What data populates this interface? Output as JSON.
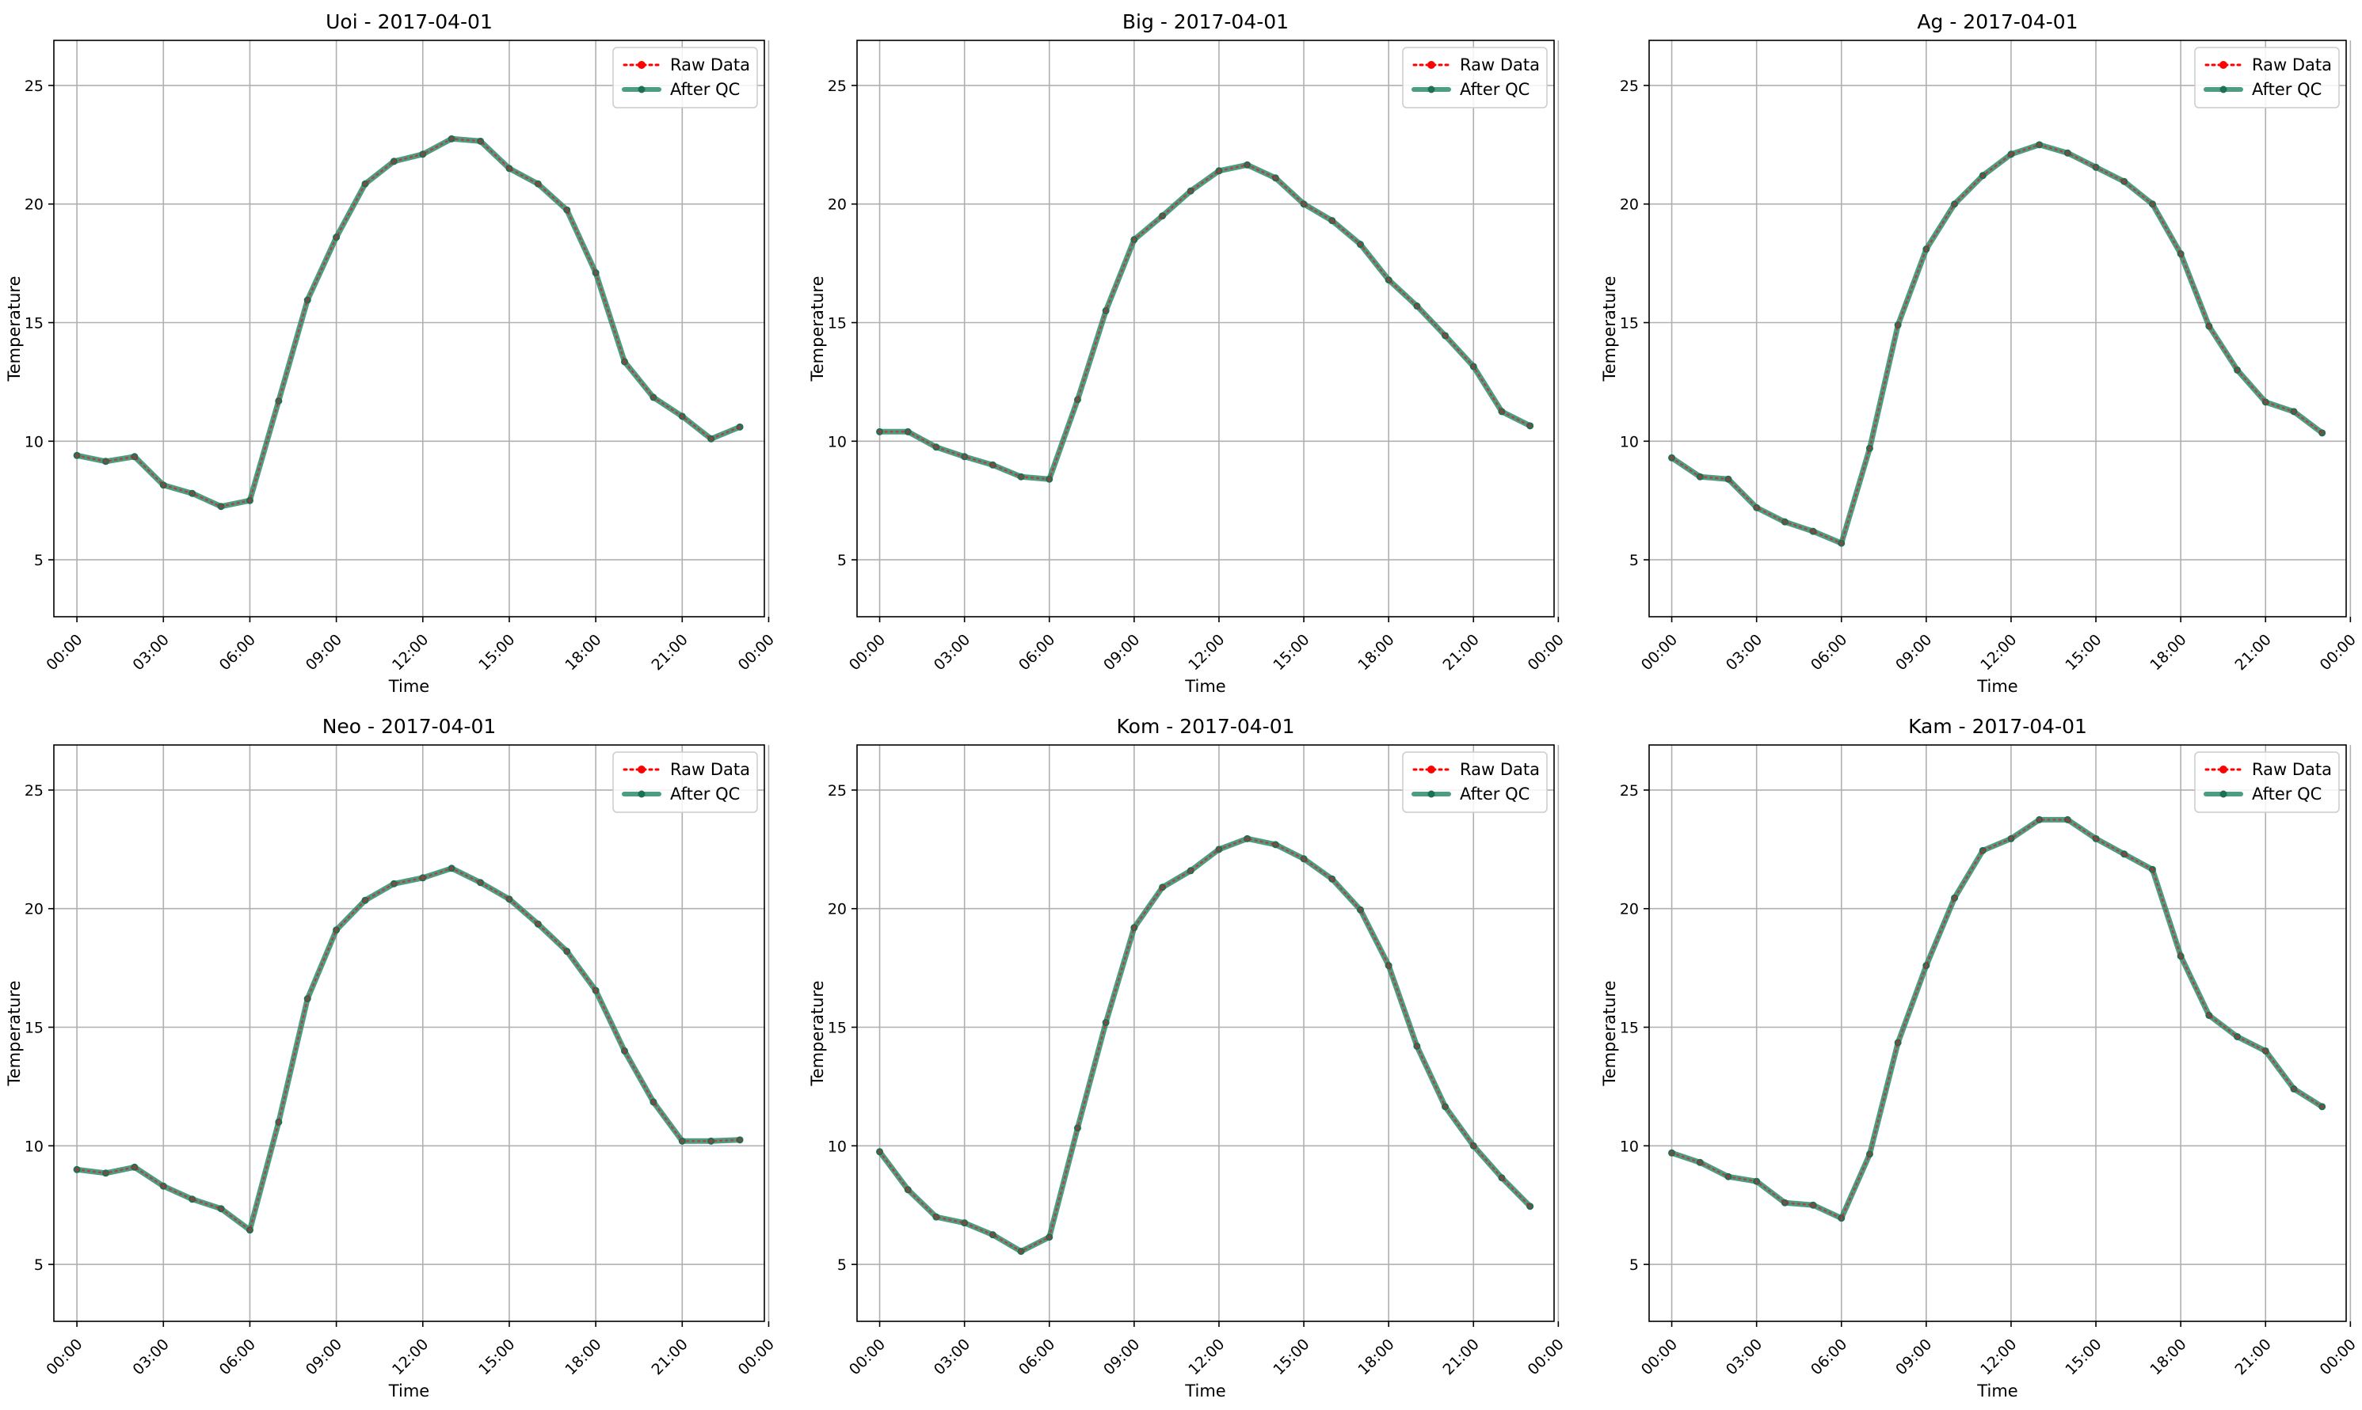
{
  "chart_data": [
    {
      "type": "line",
      "title": "Uoi - 2017-04-01",
      "xlabel": "Time",
      "ylabel": "Temperature",
      "ylim": [
        2.6,
        26.9
      ],
      "xlim": [
        -0.8,
        23.85
      ],
      "x_ticks": [
        "00:00",
        "03:00",
        "06:00",
        "09:00",
        "12:00",
        "15:00",
        "18:00",
        "21:00",
        "00:00"
      ],
      "y_ticks": [
        5,
        10,
        15,
        20,
        25
      ],
      "grid": true,
      "legend": "top-right",
      "legend_entries": [
        "Raw Data",
        "After QC"
      ],
      "x": [
        0,
        1,
        2,
        3,
        4,
        5,
        6,
        7,
        8,
        9,
        10,
        11,
        12,
        13,
        14,
        15,
        16,
        17,
        18,
        19,
        20,
        21,
        22,
        23
      ],
      "series": [
        {
          "name": "Raw Data",
          "color": "#ff0000",
          "style": "dotted",
          "values": [
            9.4,
            9.15,
            9.35,
            8.15,
            7.8,
            7.25,
            7.5,
            11.7,
            15.95,
            18.6,
            20.85,
            21.8,
            22.1,
            22.75,
            22.65,
            21.5,
            20.85,
            19.75,
            17.1,
            13.35,
            11.85,
            11.05,
            10.1,
            10.6
          ]
        },
        {
          "name": "After QC",
          "color": "#2e8b6e",
          "style": "solid",
          "values": [
            9.4,
            9.15,
            9.35,
            8.15,
            7.8,
            7.25,
            7.5,
            11.7,
            15.95,
            18.6,
            20.85,
            21.8,
            22.1,
            22.75,
            22.65,
            21.5,
            20.85,
            19.75,
            17.1,
            13.35,
            11.85,
            11.05,
            10.1,
            10.6
          ]
        }
      ]
    },
    {
      "type": "line",
      "title": "Big - 2017-04-01",
      "xlabel": "Time",
      "ylabel": "Temperature",
      "ylim": [
        2.6,
        26.9
      ],
      "xlim": [
        -0.8,
        23.85
      ],
      "x_ticks": [
        "00:00",
        "03:00",
        "06:00",
        "09:00",
        "12:00",
        "15:00",
        "18:00",
        "21:00",
        "00:00"
      ],
      "y_ticks": [
        5,
        10,
        15,
        20,
        25
      ],
      "grid": true,
      "legend": "top-right",
      "legend_entries": [
        "Raw Data",
        "After QC"
      ],
      "x": [
        0,
        1,
        2,
        3,
        4,
        5,
        6,
        7,
        8,
        9,
        10,
        11,
        12,
        13,
        14,
        15,
        16,
        17,
        18,
        19,
        20,
        21,
        22,
        23
      ],
      "series": [
        {
          "name": "Raw Data",
          "color": "#ff0000",
          "style": "dotted",
          "values": [
            10.4,
            10.4,
            9.75,
            9.35,
            9.0,
            8.5,
            8.4,
            11.75,
            15.5,
            18.5,
            19.5,
            20.55,
            21.4,
            21.65,
            21.1,
            20.0,
            19.3,
            18.3,
            16.8,
            15.7,
            14.45,
            13.15,
            11.25,
            10.65
          ]
        },
        {
          "name": "After QC",
          "color": "#2e8b6e",
          "style": "solid",
          "values": [
            10.4,
            10.4,
            9.75,
            9.35,
            9.0,
            8.5,
            8.4,
            11.75,
            15.5,
            18.5,
            19.5,
            20.55,
            21.4,
            21.65,
            21.1,
            20.0,
            19.3,
            18.3,
            16.8,
            15.7,
            14.45,
            13.15,
            11.25,
            10.65
          ]
        }
      ]
    },
    {
      "type": "line",
      "title": "Ag - 2017-04-01",
      "xlabel": "Time",
      "ylabel": "Temperature",
      "ylim": [
        2.6,
        26.9
      ],
      "xlim": [
        -0.8,
        23.85
      ],
      "x_ticks": [
        "00:00",
        "03:00",
        "06:00",
        "09:00",
        "12:00",
        "15:00",
        "18:00",
        "21:00",
        "00:00"
      ],
      "y_ticks": [
        5,
        10,
        15,
        20,
        25
      ],
      "grid": true,
      "legend": "top-right",
      "legend_entries": [
        "Raw Data",
        "After QC"
      ],
      "x": [
        0,
        1,
        2,
        3,
        4,
        5,
        6,
        7,
        8,
        9,
        10,
        11,
        12,
        13,
        14,
        15,
        16,
        17,
        18,
        19,
        20,
        21,
        22,
        23
      ],
      "series": [
        {
          "name": "Raw Data",
          "color": "#ff0000",
          "style": "dotted",
          "values": [
            9.3,
            8.5,
            8.4,
            7.2,
            6.6,
            6.2,
            5.7,
            9.7,
            14.9,
            18.1,
            20.0,
            21.2,
            22.1,
            22.5,
            22.15,
            21.55,
            20.95,
            20.0,
            17.9,
            14.85,
            13.0,
            11.65,
            11.25,
            10.35
          ]
        },
        {
          "name": "After QC",
          "color": "#2e8b6e",
          "style": "solid",
          "values": [
            9.3,
            8.5,
            8.4,
            7.2,
            6.6,
            6.2,
            5.7,
            9.7,
            14.9,
            18.1,
            20.0,
            21.2,
            22.1,
            22.5,
            22.15,
            21.55,
            20.95,
            20.0,
            17.9,
            14.85,
            13.0,
            11.65,
            11.25,
            10.35
          ]
        }
      ]
    },
    {
      "type": "line",
      "title": "Neo - 2017-04-01",
      "xlabel": "Time",
      "ylabel": "Temperature",
      "ylim": [
        2.6,
        26.9
      ],
      "xlim": [
        -0.8,
        23.85
      ],
      "x_ticks": [
        "00:00",
        "03:00",
        "06:00",
        "09:00",
        "12:00",
        "15:00",
        "18:00",
        "21:00",
        "00:00"
      ],
      "y_ticks": [
        5,
        10,
        15,
        20,
        25
      ],
      "grid": true,
      "legend": "top-right",
      "legend_entries": [
        "Raw Data",
        "After QC"
      ],
      "x": [
        0,
        1,
        2,
        3,
        4,
        5,
        6,
        7,
        8,
        9,
        10,
        11,
        12,
        13,
        14,
        15,
        16,
        17,
        18,
        19,
        20,
        21,
        22,
        23
      ],
      "series": [
        {
          "name": "Raw Data",
          "color": "#ff0000",
          "style": "dotted",
          "values": [
            9.0,
            8.85,
            9.1,
            8.3,
            7.75,
            7.35,
            6.45,
            11.0,
            16.2,
            19.1,
            20.35,
            21.05,
            21.3,
            21.7,
            21.1,
            20.4,
            19.35,
            18.2,
            16.55,
            14.0,
            11.85,
            10.2,
            10.2,
            10.25
          ]
        },
        {
          "name": "After QC",
          "color": "#2e8b6e",
          "style": "solid",
          "values": [
            9.0,
            8.85,
            9.1,
            8.3,
            7.75,
            7.35,
            6.45,
            11.0,
            16.2,
            19.1,
            20.35,
            21.05,
            21.3,
            21.7,
            21.1,
            20.4,
            19.35,
            18.2,
            16.55,
            14.0,
            11.85,
            10.2,
            10.2,
            10.25
          ]
        }
      ]
    },
    {
      "type": "line",
      "title": "Kom - 2017-04-01",
      "xlabel": "Time",
      "ylabel": "Temperature",
      "ylim": [
        2.6,
        26.9
      ],
      "xlim": [
        -0.8,
        23.85
      ],
      "x_ticks": [
        "00:00",
        "03:00",
        "06:00",
        "09:00",
        "12:00",
        "15:00",
        "18:00",
        "21:00",
        "00:00"
      ],
      "y_ticks": [
        5,
        10,
        15,
        20,
        25
      ],
      "grid": true,
      "legend": "top-right",
      "legend_entries": [
        "Raw Data",
        "After QC"
      ],
      "x": [
        0,
        1,
        2,
        3,
        4,
        5,
        6,
        7,
        8,
        9,
        10,
        11,
        12,
        13,
        14,
        15,
        16,
        17,
        18,
        19,
        20,
        21,
        22,
        23
      ],
      "series": [
        {
          "name": "Raw Data",
          "color": "#ff0000",
          "style": "dotted",
          "values": [
            9.75,
            8.15,
            7.0,
            6.75,
            6.25,
            5.55,
            6.15,
            10.75,
            15.2,
            19.2,
            20.9,
            21.6,
            22.5,
            22.95,
            22.7,
            22.1,
            21.25,
            19.95,
            17.6,
            14.2,
            11.65,
            10.0,
            8.65,
            7.45
          ]
        },
        {
          "name": "After QC",
          "color": "#2e8b6e",
          "style": "solid",
          "values": [
            9.75,
            8.15,
            7.0,
            6.75,
            6.25,
            5.55,
            6.15,
            10.75,
            15.2,
            19.2,
            20.9,
            21.6,
            22.5,
            22.95,
            22.7,
            22.1,
            21.25,
            19.95,
            17.6,
            14.2,
            11.65,
            10.0,
            8.65,
            7.45
          ]
        }
      ]
    },
    {
      "type": "line",
      "title": "Kam - 2017-04-01",
      "xlabel": "Time",
      "ylabel": "Temperature",
      "ylim": [
        2.6,
        26.9
      ],
      "xlim": [
        -0.8,
        23.85
      ],
      "x_ticks": [
        "00:00",
        "03:00",
        "06:00",
        "09:00",
        "12:00",
        "15:00",
        "18:00",
        "21:00",
        "00:00"
      ],
      "y_ticks": [
        5,
        10,
        15,
        20,
        25
      ],
      "grid": true,
      "legend": "top-right",
      "legend_entries": [
        "Raw Data",
        "After QC"
      ],
      "x": [
        0,
        1,
        2,
        3,
        4,
        5,
        6,
        7,
        8,
        9,
        10,
        11,
        12,
        13,
        14,
        15,
        16,
        17,
        18,
        19,
        20,
        21,
        22,
        23
      ],
      "series": [
        {
          "name": "Raw Data",
          "color": "#ff0000",
          "style": "dotted",
          "values": [
            9.7,
            9.3,
            8.7,
            8.5,
            7.6,
            7.5,
            6.95,
            9.65,
            14.35,
            17.6,
            20.45,
            22.45,
            22.95,
            23.75,
            23.75,
            22.95,
            22.3,
            21.65,
            18.0,
            15.5,
            14.6,
            14.0,
            12.4,
            11.65
          ]
        },
        {
          "name": "After QC",
          "color": "#2e8b6e",
          "style": "solid",
          "values": [
            9.7,
            9.3,
            8.7,
            8.5,
            7.6,
            7.5,
            6.95,
            9.65,
            14.35,
            17.6,
            20.45,
            22.45,
            22.95,
            23.75,
            23.75,
            22.95,
            22.3,
            21.65,
            18.0,
            15.5,
            14.6,
            14.0,
            12.4,
            11.65
          ]
        }
      ]
    }
  ]
}
